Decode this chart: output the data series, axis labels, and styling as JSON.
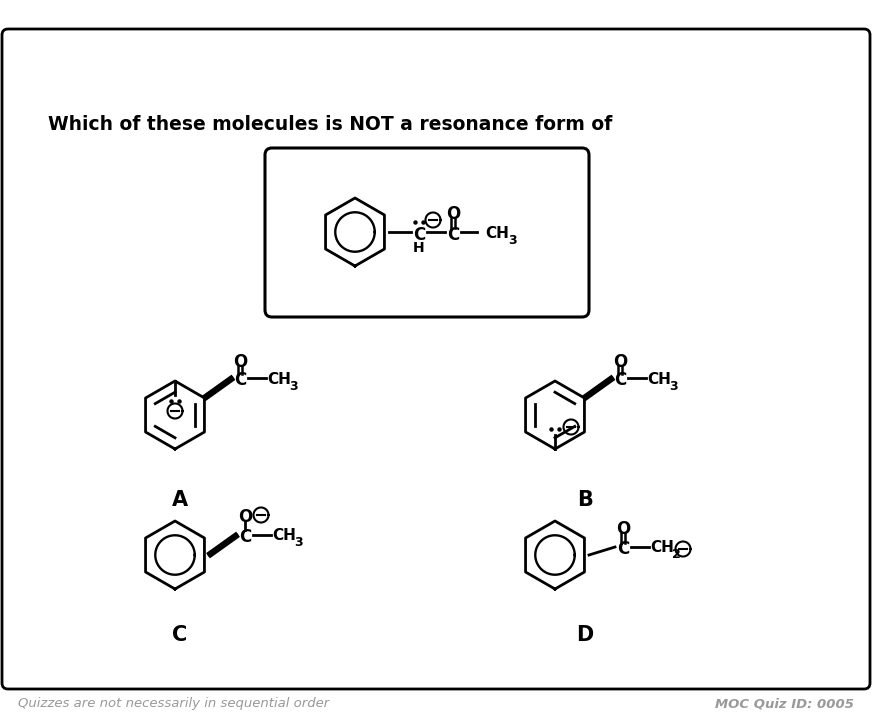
{
  "title": "Which of these molecules is NOT a resonance form of",
  "footer_left": "Quizzes are not necessarily in sequential order",
  "footer_right": "MOC Quiz ID: 0005",
  "bg_color": "#ffffff",
  "border_color": "#000000",
  "text_color": "#000000",
  "gray_color": "#999999",
  "labels": [
    "A",
    "B",
    "C",
    "D"
  ]
}
